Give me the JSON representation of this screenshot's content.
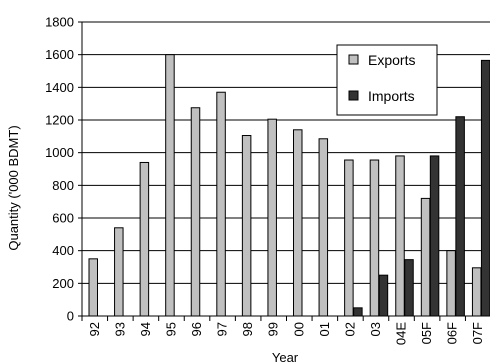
{
  "chart_data": {
    "type": "bar",
    "xlabel": "Year",
    "ylabel": "Quantity ('000 BDMT)",
    "ylim": [
      0,
      1800
    ],
    "yticks": [
      0,
      200,
      400,
      600,
      800,
      1000,
      1200,
      1400,
      1600,
      1800
    ],
    "grid": true,
    "legend_position": "top-right",
    "categories": [
      "92",
      "93",
      "94",
      "95",
      "96",
      "97",
      "98",
      "99",
      "00",
      "01",
      "02",
      "03",
      "04E",
      "05F",
      "06F",
      "07F"
    ],
    "series": [
      {
        "name": "Exports",
        "color": "#c0c0c0",
        "values": [
          350,
          540,
          940,
          1600,
          1275,
          1370,
          1105,
          1205,
          1140,
          1085,
          955,
          955,
          980,
          720,
          400,
          295
        ]
      },
      {
        "name": "Imports",
        "color": "#333333",
        "values": [
          0,
          0,
          0,
          0,
          0,
          0,
          0,
          0,
          0,
          0,
          50,
          250,
          345,
          980,
          1220,
          1565
        ]
      }
    ]
  }
}
